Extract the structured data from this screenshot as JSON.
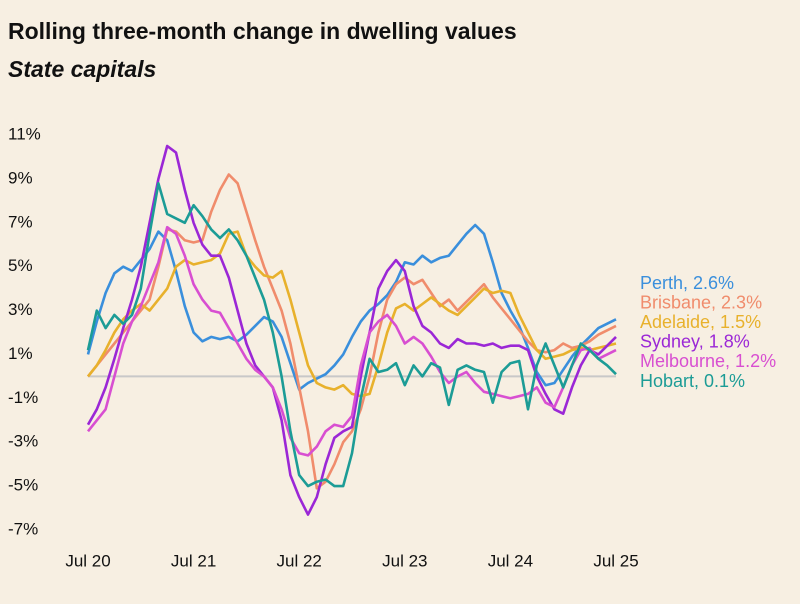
{
  "chart_data": {
    "type": "line",
    "title": "Rolling three-month change in dwelling values",
    "subtitle": "State capitals",
    "categories": [
      "Jul 20",
      null,
      null,
      null,
      null,
      null,
      null,
      null,
      null,
      null,
      null,
      null,
      "Jul 21",
      null,
      null,
      null,
      null,
      null,
      null,
      null,
      null,
      null,
      null,
      null,
      "Jul 22",
      null,
      null,
      null,
      null,
      null,
      null,
      null,
      null,
      null,
      null,
      null,
      "Jul 23",
      null,
      null,
      null,
      null,
      null,
      null,
      null,
      null,
      null,
      null,
      null,
      "Jul 24",
      null,
      null,
      null,
      null,
      null,
      null,
      null,
      null,
      null,
      null,
      null,
      "Jul 25"
    ],
    "ylim": [
      -7,
      11
    ],
    "yticks": [
      {
        "value": 11,
        "label": "11%"
      },
      {
        "value": 9,
        "label": "9%"
      },
      {
        "value": 7,
        "label": "7%"
      },
      {
        "value": 5,
        "label": "5%"
      },
      {
        "value": 3,
        "label": "3%"
      },
      {
        "value": 1,
        "label": "1%"
      },
      {
        "value": -1,
        "label": "-1%"
      },
      {
        "value": -3,
        "label": "-3%"
      },
      {
        "value": -5,
        "label": "-5%"
      },
      {
        "value": -7,
        "label": "-7%"
      }
    ],
    "zero_line": true,
    "series": [
      {
        "name": "Perth, 2.6%",
        "color": "#3a8fdc",
        "values": [
          1.0,
          2.5,
          3.8,
          4.7,
          5.0,
          4.8,
          5.3,
          5.8,
          6.6,
          6.2,
          4.8,
          3.2,
          2.0,
          1.6,
          1.8,
          1.7,
          1.8,
          1.6,
          1.9,
          2.3,
          2.7,
          2.5,
          1.8,
          0.6,
          -0.6,
          -0.3,
          -0.1,
          0.1,
          0.5,
          1.0,
          1.8,
          2.5,
          3.0,
          3.3,
          3.7,
          4.3,
          5.2,
          5.1,
          5.5,
          5.2,
          5.4,
          5.5,
          6.0,
          6.5,
          6.9,
          6.5,
          5.2,
          3.8,
          3.0,
          2.3,
          1.3,
          0.2,
          -0.4,
          -0.3,
          0.3,
          0.9,
          1.4,
          1.8,
          2.2,
          2.4,
          2.6
        ]
      },
      {
        "name": "Brisbane, 2.3%",
        "color": "#f08c6c",
        "values": [
          0.0,
          0.5,
          1.0,
          1.5,
          2.0,
          2.5,
          3.0,
          3.5,
          5.0,
          6.7,
          6.6,
          6.2,
          6.1,
          6.2,
          7.5,
          8.5,
          9.2,
          8.8,
          7.5,
          6.2,
          5.0,
          4.0,
          3.0,
          1.5,
          -0.5,
          -2.5,
          -5.1,
          -4.8,
          -4.0,
          -3.0,
          -2.5,
          -1.5,
          0.0,
          2.0,
          3.5,
          4.2,
          4.5,
          4.2,
          4.4,
          3.8,
          3.2,
          3.5,
          3.0,
          3.4,
          3.8,
          4.2,
          3.6,
          3.1,
          2.6,
          2.1,
          1.6,
          1.2,
          1.1,
          1.2,
          1.5,
          1.3,
          1.4,
          1.6,
          1.9,
          2.1,
          2.3
        ]
      },
      {
        "name": "Adelaide, 1.5%",
        "color": "#e8b12c",
        "values": [
          0.0,
          0.5,
          1.2,
          2.0,
          2.6,
          3.0,
          3.3,
          3.0,
          3.5,
          4.0,
          5.0,
          5.3,
          5.1,
          5.2,
          5.3,
          5.6,
          6.5,
          6.6,
          5.5,
          5.0,
          4.6,
          4.5,
          4.8,
          3.5,
          2.0,
          0.5,
          -0.3,
          -0.5,
          -0.6,
          -0.4,
          -0.8,
          -0.9,
          -0.8,
          0.5,
          2.0,
          3.1,
          3.3,
          3.0,
          3.3,
          3.6,
          3.3,
          3.0,
          2.8,
          3.2,
          3.6,
          4.0,
          3.8,
          3.9,
          3.8,
          2.8,
          2.0,
          1.2,
          0.8,
          0.9,
          1.0,
          1.2,
          1.3,
          1.2,
          1.3,
          1.4,
          1.5
        ]
      },
      {
        "name": "Sydney, 1.8%",
        "color": "#9b27d6",
        "values": [
          -2.2,
          -1.5,
          -0.5,
          0.8,
          2.2,
          3.5,
          5.0,
          7.0,
          9.0,
          10.5,
          10.2,
          8.5,
          7.0,
          6.0,
          5.5,
          5.5,
          4.5,
          3.0,
          1.5,
          0.5,
          0.0,
          -0.5,
          -2.0,
          -4.5,
          -5.5,
          -6.3,
          -5.5,
          -4.0,
          -2.8,
          -2.5,
          -2.3,
          0.0,
          2.0,
          4.0,
          4.8,
          5.3,
          4.8,
          3.2,
          2.3,
          2.0,
          1.5,
          1.3,
          1.7,
          1.5,
          1.5,
          1.4,
          1.5,
          1.3,
          1.4,
          1.4,
          1.2,
          0.0,
          -0.8,
          -1.5,
          -1.7,
          -0.5,
          0.5,
          1.2,
          1.0,
          1.4,
          1.8
        ]
      },
      {
        "name": "Melbourne, 1.2%",
        "color": "#d84fd1",
        "values": [
          -2.5,
          -2.0,
          -1.5,
          0.0,
          1.5,
          2.5,
          3.2,
          4.2,
          5.2,
          6.8,
          6.5,
          5.5,
          4.2,
          3.5,
          3.0,
          2.9,
          2.2,
          1.5,
          0.8,
          0.3,
          0.0,
          -0.5,
          -1.5,
          -2.8,
          -3.5,
          -3.6,
          -3.2,
          -2.5,
          -2.2,
          -2.3,
          -1.8,
          0.5,
          2.0,
          2.5,
          2.8,
          2.3,
          1.5,
          1.8,
          1.5,
          0.9,
          0.2,
          -0.3,
          0.0,
          0.2,
          -0.3,
          -0.7,
          -0.8,
          -0.9,
          -1.0,
          -0.9,
          -0.8,
          -0.5,
          -1.2,
          -1.4,
          -0.5,
          0.5,
          1.2,
          1.3,
          0.8,
          1.0,
          1.2
        ]
      },
      {
        "name": "Hobart, 0.1%",
        "color": "#1c9c96",
        "values": [
          1.2,
          3.0,
          2.2,
          2.8,
          2.4,
          2.8,
          4.0,
          6.5,
          8.8,
          7.4,
          7.2,
          7.0,
          7.8,
          7.3,
          6.7,
          6.3,
          6.7,
          6.2,
          5.5,
          4.5,
          3.5,
          2.0,
          0.0,
          -2.5,
          -4.5,
          -5.0,
          -4.8,
          -4.7,
          -5.0,
          -5.0,
          -3.5,
          -1.0,
          0.8,
          0.2,
          0.3,
          0.6,
          -0.4,
          0.5,
          0.0,
          0.6,
          0.4,
          -1.3,
          0.3,
          0.5,
          0.3,
          0.2,
          -1.2,
          0.2,
          0.6,
          0.7,
          -1.5,
          0.5,
          1.5,
          0.5,
          -0.5,
          0.5,
          1.5,
          1.2,
          0.8,
          0.5,
          0.1
        ]
      }
    ]
  }
}
